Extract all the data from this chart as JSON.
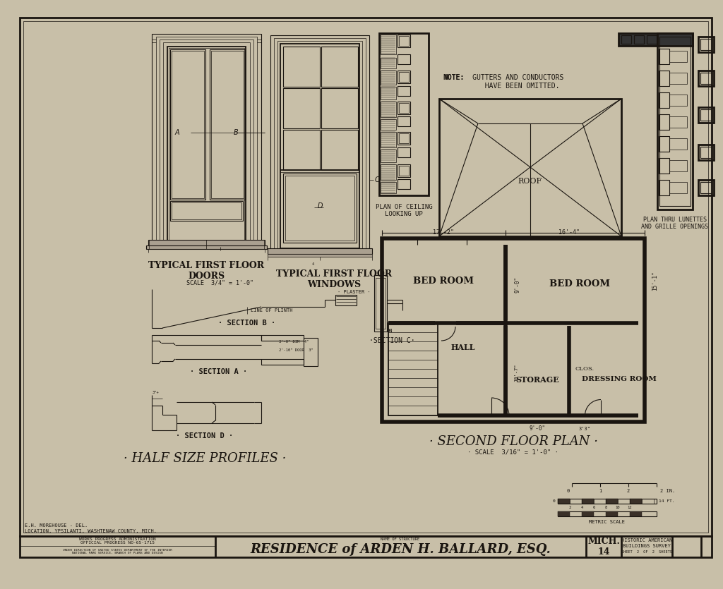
{
  "bg_color": "#c8bfa8",
  "paper_color": "#cec5ad",
  "line_color": "#1a1510",
  "title": "RESIDENCE of ARDEN H. BALLARD, ESQ.",
  "sheet_title": "SECOND FLOOR PLAN",
  "scale_note": "SCALE  3/16\" = 1'-0\"",
  "half_size_profiles": "HALF SIZE PROFILES",
  "typical_doors": "TYPICAL FIRST FLOOR\nDOORS",
  "typical_windows": "TYPICAL FIRST FLOOR\nWINDOWS",
  "scale_doors": "SCALE  3/4\" = 1'-0\"",
  "section_b": "SECTION B",
  "section_a": "SECTION A",
  "section_c": "SECTION C",
  "section_d": "SECTION D",
  "note_text": "NOTE:  GUTTERS AND CONDUCTORS\n          HAVE BEEN OMITTED.",
  "plan_ceiling": "PLAN OF CEILING\nLOOKING UP",
  "plan_lunettes": "PLAN THRU LUNETTES\nAND GRILLE OPENINGS",
  "roof_label": "ROOF",
  "bed_room1": "BED ROOM",
  "bed_room2": "BED ROOM",
  "hall": "HALL",
  "storage": "STORAGE",
  "clos": "CLOS.",
  "dressing_room": "DRESSING ROOM",
  "survey_no": "MICH.\n14",
  "sheet_info": "HISTORIC AMERICAN\nBUILDINGS SURVEY",
  "sheet_num": "SHEET  2  OF  2  SHEETS",
  "wpa_text": "WORKS PROGRESS ADMINISTRATION\nOFFICIAL PROGRESS NO-65-1715",
  "location": "LOCATION, YPSILANTI, WASHTENAW COUNTY, MICH.",
  "delineator": "E.H. MOREHOUSE - DEL.",
  "name_of_structure": "NAME OF STRUCTURE"
}
